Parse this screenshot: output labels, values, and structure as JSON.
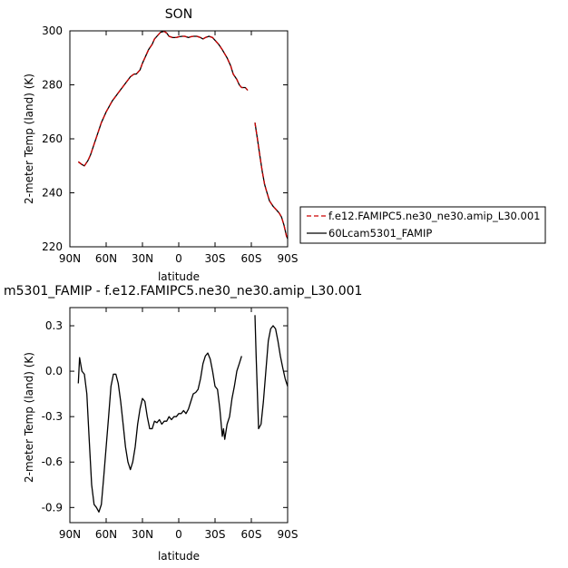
{
  "chart_data": [
    {
      "type": "line",
      "title": "SON",
      "xlabel": "latitude",
      "ylabel": "2-meter Temp (land) (K)",
      "xlim": [
        -90,
        90
      ],
      "ylim": [
        220,
        300
      ],
      "x_ticks": [
        -90,
        -60,
        -30,
        0,
        30,
        60,
        90
      ],
      "x_tick_labels": [
        "90N",
        "60N",
        "30N",
        "0",
        "30S",
        "60S",
        "90S"
      ],
      "y_ticks": [
        220,
        240,
        260,
        280,
        300
      ],
      "y_tick_labels": [
        "220",
        "240",
        "260",
        "280",
        "300"
      ],
      "legend": "right",
      "series": [
        {
          "name": "f.e12.FAMIPC5.ne30_ne30.amip_L30.001",
          "color": "#cc0000",
          "dash": "dashed",
          "segments": [
            [
              [
                -83,
                251.5
              ],
              [
                -80,
                250.5
              ],
              [
                -78,
                250
              ],
              [
                -75,
                252
              ],
              [
                -73,
                254
              ],
              [
                -70,
                258
              ],
              [
                -67,
                262
              ],
              [
                -64,
                266
              ],
              [
                -60,
                270
              ],
              [
                -55,
                274
              ],
              [
                -50,
                277
              ],
              [
                -45,
                280
              ],
              [
                -40,
                283
              ],
              [
                -37,
                284
              ],
              [
                -35,
                284
              ],
              [
                -32,
                285.5
              ],
              [
                -30,
                288
              ],
              [
                -27,
                291
              ],
              [
                -25,
                293
              ],
              [
                -22,
                295
              ],
              [
                -20,
                297
              ],
              [
                -17,
                298.5
              ],
              [
                -15,
                299.5
              ],
              [
                -12,
                299.8
              ],
              [
                -10,
                299.2
              ],
              [
                -8,
                298
              ],
              [
                -5,
                297.5
              ],
              [
                -2,
                297.5
              ],
              [
                0,
                297.8
              ],
              [
                3,
                298
              ],
              [
                5,
                298
              ],
              [
                8,
                297.5
              ],
              [
                10,
                297.8
              ],
              [
                12,
                298
              ],
              [
                15,
                298
              ],
              [
                18,
                297.5
              ],
              [
                20,
                297
              ],
              [
                22,
                297.5
              ],
              [
                25,
                298
              ],
              [
                28,
                297.5
              ],
              [
                30,
                296.5
              ],
              [
                33,
                295
              ],
              [
                36,
                293
              ],
              [
                40,
                290
              ],
              [
                43,
                287
              ],
              [
                45,
                284
              ],
              [
                48,
                282
              ],
              [
                50,
                280
              ],
              [
                52,
                279
              ],
              [
                55,
                279
              ],
              [
                57,
                278
              ]
            ],
            [
              [
                63,
                266
              ],
              [
                65,
                260
              ],
              [
                67,
                254
              ],
              [
                69,
                248
              ],
              [
                71,
                243
              ],
              [
                73,
                240
              ],
              [
                75,
                237
              ],
              [
                78,
                235
              ],
              [
                80,
                234
              ],
              [
                83,
                232.5
              ],
              [
                85,
                231
              ],
              [
                87,
                228
              ],
              [
                89,
                224
              ],
              [
                90,
                223
              ]
            ]
          ]
        },
        {
          "name": "60Lcam5301_FAMIP",
          "color": "#000000",
          "dash": "solid",
          "segments": [
            [
              [
                -83,
                251.5
              ],
              [
                -80,
                250.5
              ],
              [
                -78,
                250
              ],
              [
                -75,
                252
              ],
              [
                -73,
                254
              ],
              [
                -70,
                258
              ],
              [
                -67,
                262
              ],
              [
                -64,
                266
              ],
              [
                -60,
                270
              ],
              [
                -55,
                274
              ],
              [
                -50,
                277
              ],
              [
                -45,
                280
              ],
              [
                -40,
                283
              ],
              [
                -37,
                284
              ],
              [
                -35,
                284
              ],
              [
                -32,
                285.5
              ],
              [
                -30,
                288
              ],
              [
                -27,
                291
              ],
              [
                -25,
                293
              ],
              [
                -22,
                295
              ],
              [
                -20,
                297
              ],
              [
                -17,
                298.5
              ],
              [
                -15,
                299.5
              ],
              [
                -12,
                299.8
              ],
              [
                -10,
                299.2
              ],
              [
                -8,
                298
              ],
              [
                -5,
                297.5
              ],
              [
                -2,
                297.5
              ],
              [
                0,
                297.8
              ],
              [
                3,
                298
              ],
              [
                5,
                298
              ],
              [
                8,
                297.5
              ],
              [
                10,
                297.8
              ],
              [
                12,
                298
              ],
              [
                15,
                298
              ],
              [
                18,
                297.5
              ],
              [
                20,
                297
              ],
              [
                22,
                297.5
              ],
              [
                25,
                298
              ],
              [
                28,
                297.5
              ],
              [
                30,
                296.5
              ],
              [
                33,
                295
              ],
              [
                36,
                293
              ],
              [
                40,
                290
              ],
              [
                43,
                287
              ],
              [
                45,
                284
              ],
              [
                48,
                282
              ],
              [
                50,
                280
              ],
              [
                52,
                279
              ],
              [
                55,
                279
              ],
              [
                57,
                278
              ]
            ],
            [
              [
                63,
                266
              ],
              [
                65,
                260
              ],
              [
                67,
                254
              ],
              [
                69,
                248
              ],
              [
                71,
                243
              ],
              [
                73,
                240
              ],
              [
                75,
                237
              ],
              [
                78,
                235
              ],
              [
                80,
                234
              ],
              [
                83,
                232.5
              ],
              [
                85,
                231
              ],
              [
                87,
                228
              ],
              [
                89,
                224
              ],
              [
                90,
                223
              ]
            ]
          ]
        }
      ]
    },
    {
      "type": "line",
      "title": "m5301_FAMIP - f.e12.FAMIPC5.ne30_ne30.amip_L30.001",
      "xlabel": "latitude",
      "ylabel": "2-meter Temp (land) (K)",
      "xlim": [
        -90,
        90
      ],
      "ylim": [
        -1.0,
        0.42
      ],
      "x_ticks": [
        -90,
        -60,
        -30,
        0,
        30,
        60,
        90
      ],
      "x_tick_labels": [
        "90N",
        "60N",
        "30N",
        "0",
        "30S",
        "60S",
        "90S"
      ],
      "y_ticks": [
        -0.9,
        -0.6,
        -0.3,
        0.0,
        0.3
      ],
      "y_tick_labels": [
        "-0.9",
        "-0.6",
        "-0.3",
        "0.0",
        "0.3"
      ],
      "series": [
        {
          "color": "#000000",
          "dash": "solid",
          "segments": [
            [
              [
                -83,
                -0.08
              ],
              [
                -82,
                0.09
              ],
              [
                -80,
                0.0
              ],
              [
                -78,
                -0.02
              ],
              [
                -76,
                -0.15
              ],
              [
                -74,
                -0.45
              ],
              [
                -72,
                -0.75
              ],
              [
                -70,
                -0.88
              ],
              [
                -68,
                -0.9
              ],
              [
                -66,
                -0.93
              ],
              [
                -64,
                -0.88
              ],
              [
                -62,
                -0.7
              ],
              [
                -60,
                -0.5
              ],
              [
                -58,
                -0.3
              ],
              [
                -56,
                -0.1
              ],
              [
                -54,
                -0.02
              ],
              [
                -52,
                -0.02
              ],
              [
                -50,
                -0.08
              ],
              [
                -48,
                -0.2
              ],
              [
                -46,
                -0.35
              ],
              [
                -44,
                -0.5
              ],
              [
                -42,
                -0.6
              ],
              [
                -40,
                -0.65
              ],
              [
                -38,
                -0.6
              ],
              [
                -36,
                -0.5
              ],
              [
                -34,
                -0.35
              ],
              [
                -32,
                -0.25
              ],
              [
                -30,
                -0.18
              ],
              [
                -28,
                -0.2
              ],
              [
                -26,
                -0.3
              ],
              [
                -24,
                -0.38
              ],
              [
                -22,
                -0.38
              ],
              [
                -20,
                -0.33
              ],
              [
                -18,
                -0.34
              ],
              [
                -16,
                -0.32
              ],
              [
                -14,
                -0.35
              ],
              [
                -12,
                -0.33
              ],
              [
                -10,
                -0.33
              ],
              [
                -8,
                -0.3
              ],
              [
                -6,
                -0.32
              ],
              [
                -4,
                -0.3
              ],
              [
                -2,
                -0.3
              ],
              [
                0,
                -0.28
              ],
              [
                2,
                -0.28
              ],
              [
                4,
                -0.26
              ],
              [
                6,
                -0.28
              ],
              [
                8,
                -0.25
              ],
              [
                10,
                -0.2
              ],
              [
                12,
                -0.15
              ],
              [
                14,
                -0.14
              ],
              [
                16,
                -0.12
              ],
              [
                18,
                -0.05
              ],
              [
                20,
                0.05
              ],
              [
                22,
                0.1
              ],
              [
                24,
                0.12
              ],
              [
                26,
                0.08
              ],
              [
                28,
                0.0
              ],
              [
                30,
                -0.1
              ],
              [
                32,
                -0.12
              ],
              [
                34,
                -0.25
              ],
              [
                36,
                -0.43
              ],
              [
                37,
                -0.38
              ],
              [
                38,
                -0.45
              ],
              [
                40,
                -0.35
              ],
              [
                42,
                -0.3
              ],
              [
                44,
                -0.18
              ],
              [
                46,
                -0.1
              ],
              [
                48,
                0.0
              ],
              [
                50,
                0.05
              ],
              [
                52,
                0.1
              ]
            ],
            [
              [
                63,
                0.37
              ],
              [
                64,
                0.1
              ],
              [
                66,
                -0.38
              ],
              [
                68,
                -0.35
              ],
              [
                70,
                -0.2
              ],
              [
                72,
                0.0
              ],
              [
                74,
                0.2
              ],
              [
                76,
                0.28
              ],
              [
                78,
                0.3
              ],
              [
                80,
                0.28
              ],
              [
                82,
                0.2
              ],
              [
                84,
                0.1
              ],
              [
                86,
                0.02
              ],
              [
                88,
                -0.05
              ],
              [
                90,
                -0.1
              ]
            ]
          ]
        }
      ]
    }
  ]
}
